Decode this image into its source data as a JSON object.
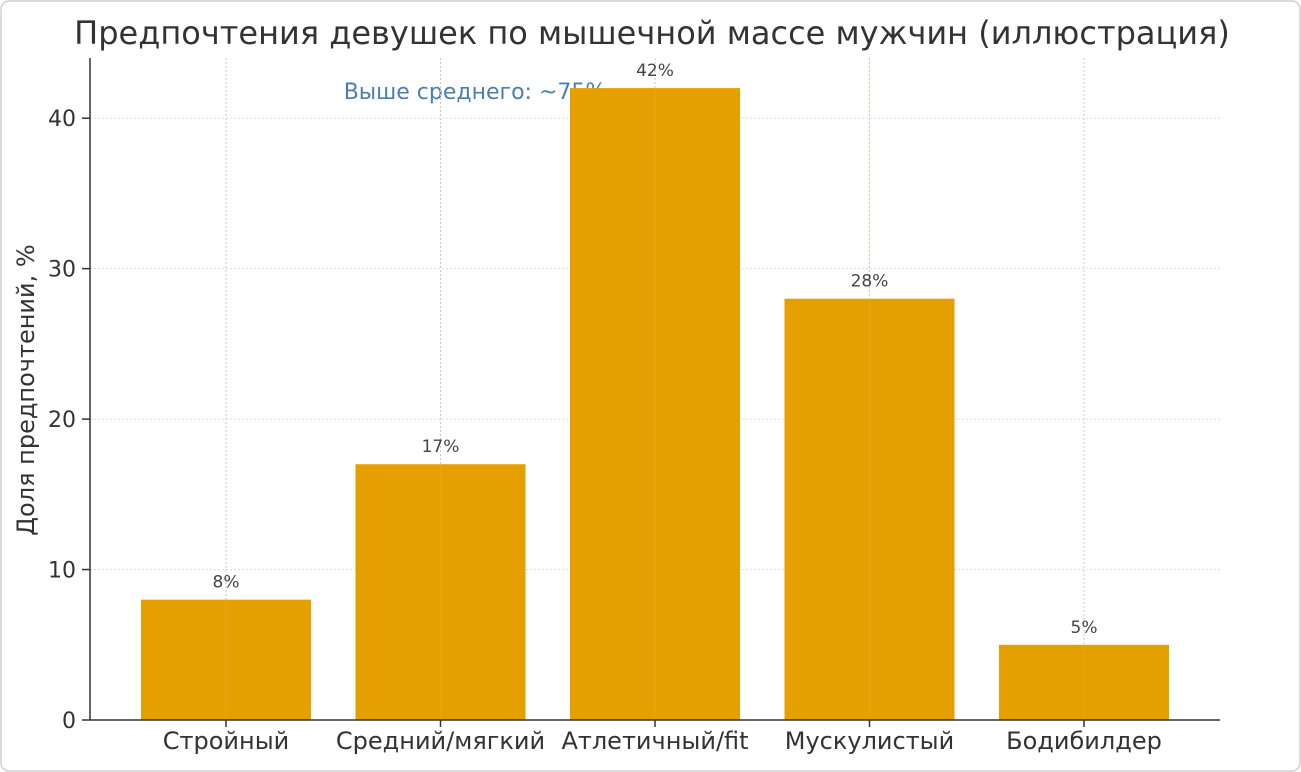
{
  "chart_data": {
    "type": "bar",
    "title": "Предпочтения девушек по мышечной массе мужчин (иллюстрация)",
    "xlabel": "",
    "ylabel": "Доля предпочтений, %",
    "categories": [
      "Стройный",
      "Средний/мягкий",
      "Атлетичный/fit",
      "Мускулистый",
      "Бодибилдер"
    ],
    "values": [
      8,
      17,
      42,
      28,
      5
    ],
    "data_labels": [
      "8%",
      "17%",
      "42%",
      "28%",
      "5%"
    ],
    "annotation": "Выше среднего: ~75%",
    "ylim": [
      0,
      44
    ],
    "yticks": [
      0,
      10,
      20,
      30,
      40
    ],
    "grid": true,
    "legend": "none",
    "colors": {
      "bar": "#e69f00",
      "annotation": "#4a7fb0",
      "grid": "#dddddd",
      "axis": "#333333"
    }
  }
}
